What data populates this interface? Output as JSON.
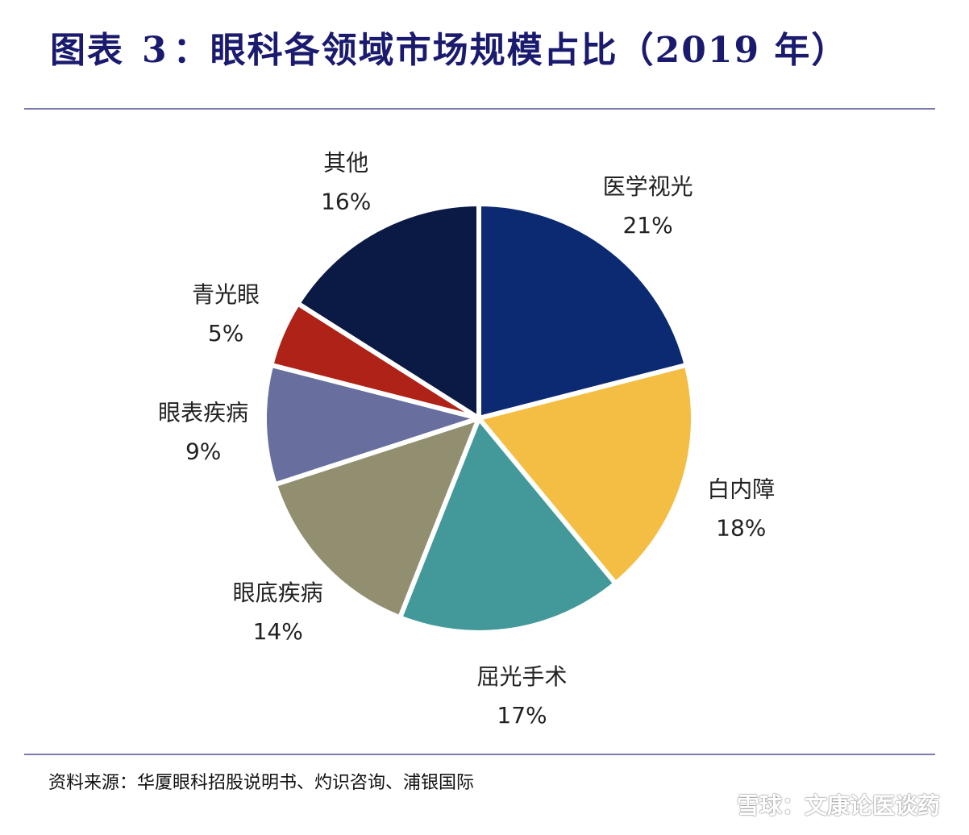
{
  "header": {
    "title_prefix": "图表",
    "title_number": "3",
    "title_text": "：眼科各领域市场规模占比（2019 年）"
  },
  "source": "资料来源：华厦眼科招股说明书、灼识咨询、浦银国际",
  "watermark": "雪球：文康论医谈药",
  "chart_data": {
    "type": "pie",
    "title": "眼科各领域市场规模占比（2019 年）",
    "start_angle_deg": 0,
    "direction": "clockwise",
    "slices": [
      {
        "label": "医学视光",
        "pct_label": "21%",
        "value": 21,
        "color": "#0b2a72"
      },
      {
        "label": "白内障",
        "pct_label": "18%",
        "value": 18,
        "color": "#f3be43"
      },
      {
        "label": "屈光手术",
        "pct_label": "17%",
        "value": 17,
        "color": "#43999a"
      },
      {
        "label": "眼底疾病",
        "pct_label": "14%",
        "value": 14,
        "color": "#928f71"
      },
      {
        "label": "眼表疾病",
        "pct_label": "9%",
        "value": 9,
        "color": "#686e9d"
      },
      {
        "label": "青光眼",
        "pct_label": "5%",
        "value": 5,
        "color": "#ae2217"
      },
      {
        "label": "其他",
        "pct_label": "16%",
        "value": 16,
        "color": "#0a1a44"
      }
    ]
  }
}
